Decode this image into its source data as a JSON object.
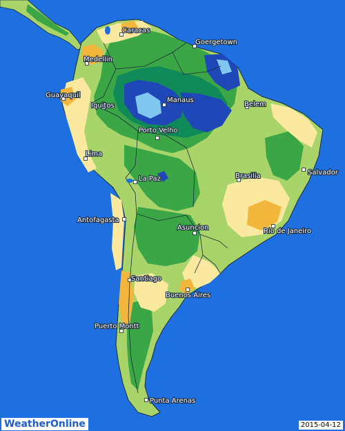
{
  "map": {
    "colors": {
      "ocean": "#1e6fe0",
      "very_dry": "#f2b63c",
      "dry": "#fbe9a0",
      "moderate": "#a8d46a",
      "wet": "#3aa646",
      "very_wet": "#118a5a",
      "saturated": "#1f47b8",
      "extreme": "#7fc7ee",
      "border": "#1b2a3a"
    },
    "cities": [
      {
        "name": "Caracas"
      },
      {
        "name": "Goergetown"
      },
      {
        "name": "Medellin"
      },
      {
        "name": "Guayaquil"
      },
      {
        "name": "Iquitos"
      },
      {
        "name": "Manaus"
      },
      {
        "name": "Belem"
      },
      {
        "name": "Porto Velho"
      },
      {
        "name": "Lima"
      },
      {
        "name": "Salvador"
      },
      {
        "name": "Brasilia"
      },
      {
        "name": "La Paz"
      },
      {
        "name": "Antofagasta"
      },
      {
        "name": "Asuncion"
      },
      {
        "name": "Rio de Janeiro"
      },
      {
        "name": "Santiago"
      },
      {
        "name": "Buenos Aires"
      },
      {
        "name": "Puerto Montt"
      },
      {
        "name": "Punta Arenas"
      }
    ]
  },
  "branding": {
    "logo_text": "WeatherOnline"
  },
  "date": "2015-04-12"
}
